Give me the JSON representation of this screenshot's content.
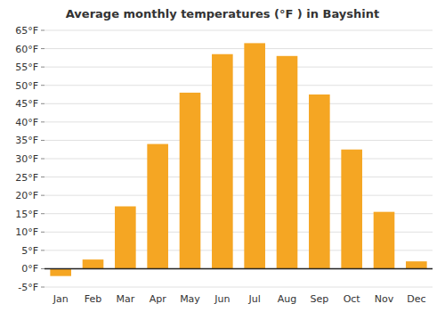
{
  "chart_data": {
    "type": "bar",
    "title": "Average monthly temperatures (°F ) in Bayshint",
    "categories": [
      "Jan",
      "Feb",
      "Mar",
      "Apr",
      "May",
      "Jun",
      "Jul",
      "Aug",
      "Sep",
      "Oct",
      "Nov",
      "Dec"
    ],
    "values": [
      -2,
      2.5,
      17,
      34,
      48,
      58.5,
      61.5,
      58,
      47.5,
      32.5,
      15.5,
      2
    ],
    "color": "#F5A623",
    "ylim": [
      -5,
      65
    ],
    "yticks": [
      {
        "value": -5,
        "label": "-5°F"
      },
      {
        "value": 0,
        "label": "0°F"
      },
      {
        "value": 5,
        "label": "5°F"
      },
      {
        "value": 10,
        "label": "10°F"
      },
      {
        "value": 15,
        "label": "15°F"
      },
      {
        "value": 20,
        "label": "20°F"
      },
      {
        "value": 25,
        "label": "25°F"
      },
      {
        "value": 30,
        "label": "30°F"
      },
      {
        "value": 35,
        "label": "35°F"
      },
      {
        "value": 40,
        "label": "40°F"
      },
      {
        "value": 45,
        "label": "45°F"
      },
      {
        "value": 50,
        "label": "50°F"
      },
      {
        "value": 55,
        "label": "55°F"
      },
      {
        "value": 60,
        "label": "60°F"
      },
      {
        "value": 65,
        "label": "65°F"
      }
    ],
    "grid": true
  }
}
